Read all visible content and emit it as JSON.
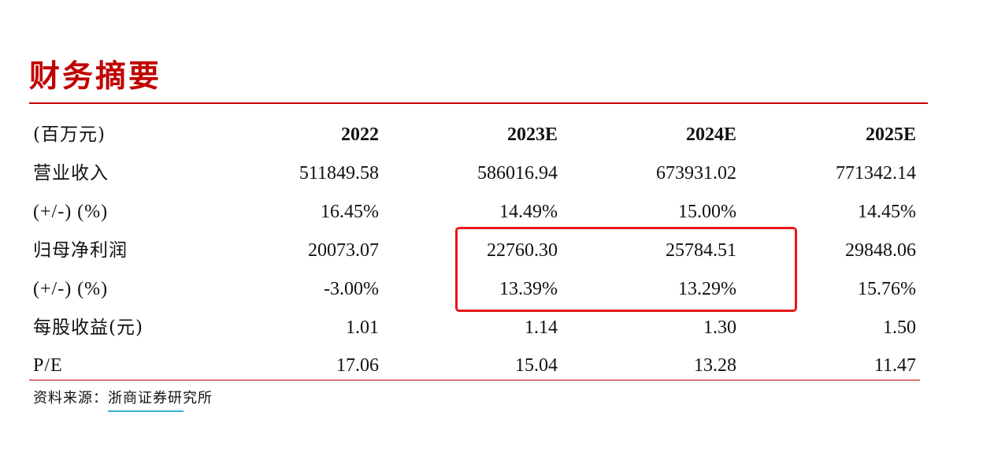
{
  "title": "财务摘要",
  "table": {
    "header": {
      "label": "(百万元)",
      "years": [
        "2022",
        "2023E",
        "2024E",
        "2025E"
      ]
    },
    "rows": [
      {
        "label": "营业收入",
        "values": [
          "511849.58",
          "586016.94",
          "673931.02",
          "771342.14"
        ]
      },
      {
        "label": "(+/-) (%)",
        "values": [
          "16.45%",
          "14.49%",
          "15.00%",
          "14.45%"
        ]
      },
      {
        "label": "归母净利润",
        "values": [
          "20073.07",
          "22760.30",
          "25784.51",
          "29848.06"
        ]
      },
      {
        "label": "(+/-) (%)",
        "values": [
          "-3.00%",
          "13.39%",
          "13.29%",
          "15.76%"
        ]
      },
      {
        "label": "每股收益(元)",
        "values": [
          "1.01",
          "1.14",
          "1.30",
          "1.50"
        ]
      },
      {
        "label": "P/E",
        "values": [
          "17.06",
          "15.04",
          "13.28",
          "11.47"
        ]
      }
    ]
  },
  "source": {
    "prefix": "资料来源：",
    "org": "浙商证券",
    "suffix": "研究所"
  },
  "colors": {
    "title": "#c00000",
    "rules": "#c00000",
    "highlight_box": "#e8191b",
    "source_underline": "#3aaed8"
  }
}
